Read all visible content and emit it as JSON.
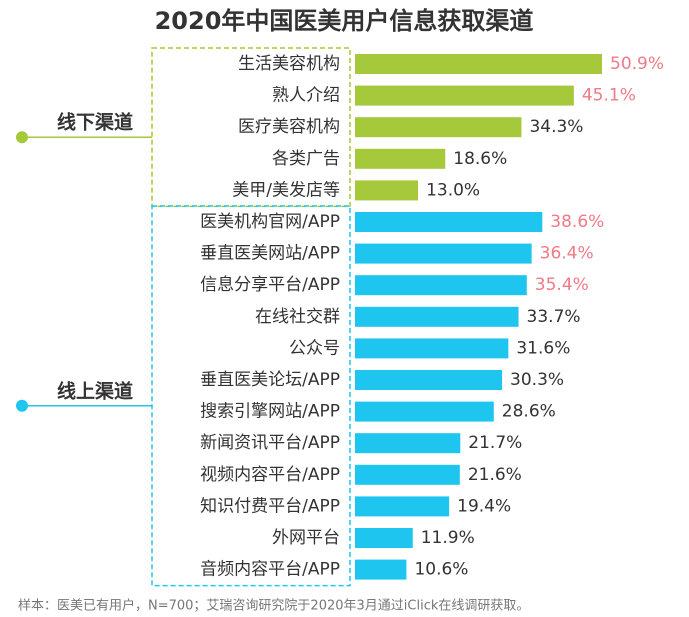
{
  "chart_data": {
    "type": "bar",
    "orientation": "horizontal",
    "title": "2020年中国医美用户信息获取渠道",
    "groups": [
      {
        "name": "线下渠道",
        "color": "#a5c93a",
        "categories": [
          "生活美容机构",
          "熟人介绍",
          "医疗美容机构",
          "各类广告",
          "美甲/美发店等"
        ],
        "values": [
          50.9,
          45.1,
          34.3,
          18.6,
          13.0
        ],
        "value_labels": [
          "50.9%",
          "45.1%",
          "34.3%",
          "18.6%",
          "13.0%"
        ],
        "value_label_colors": [
          "#f07a86",
          "#f07a86",
          "#333333",
          "#333333",
          "#333333"
        ]
      },
      {
        "name": "线上渠道",
        "color": "#1ec6ef",
        "categories": [
          "医美机构官网/APP",
          "垂直医美网站/APP",
          "信息分享平台/APP",
          "在线社交群",
          "公众号",
          "垂直医美论坛/APP",
          "搜索引擎网站/APP",
          "新闻资讯平台/APP",
          "视频内容平台/APP",
          "知识付费平台/APP",
          "外网平台",
          "音频内容平台/APP"
        ],
        "values": [
          38.6,
          36.4,
          35.4,
          33.7,
          31.6,
          30.3,
          28.6,
          21.7,
          21.6,
          19.4,
          11.9,
          10.6
        ],
        "value_labels": [
          "38.6%",
          "36.4%",
          "35.4%",
          "33.7%",
          "31.6%",
          "30.3%",
          "28.6%",
          "21.7%",
          "21.6%",
          "19.4%",
          "11.9%",
          "10.6%"
        ],
        "value_label_colors": [
          "#f07a86",
          "#f07a86",
          "#f07a86",
          "#333333",
          "#333333",
          "#333333",
          "#333333",
          "#333333",
          "#333333",
          "#333333",
          "#333333",
          "#333333"
        ]
      }
    ],
    "note": "样本：医美已有用户，N=700；艾瑞咨询研究院于2020年3月通过iClick在线调研获取。"
  }
}
